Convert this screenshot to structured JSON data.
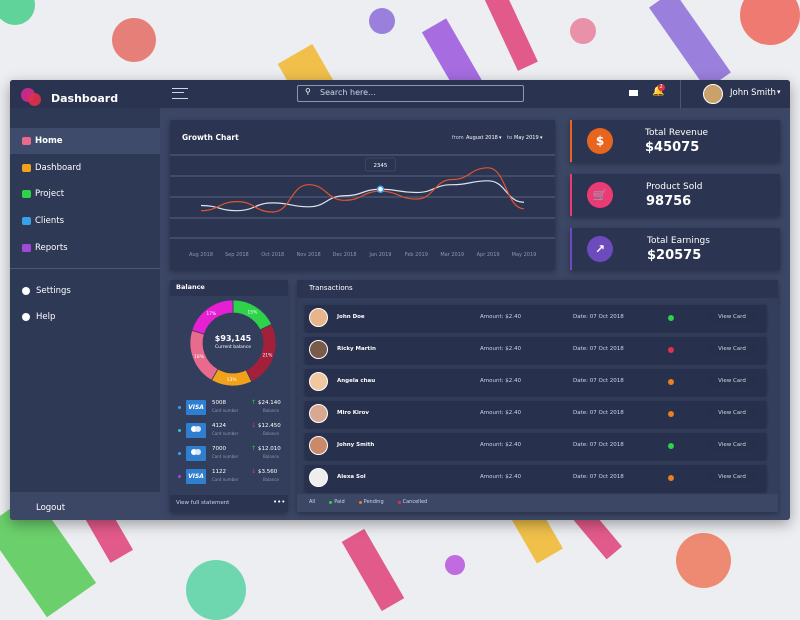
{
  "brand": "Dashboard",
  "search_placeholder": "Search here...",
  "notification_count": 2,
  "user": "John Smith",
  "nav": [
    "Home",
    "Dashboard",
    "Project",
    "Clients",
    "Reports"
  ],
  "nav_secondary": [
    "Settings",
    "Help"
  ],
  "logout": "Logout",
  "growth_chart": {
    "title": "Growth Chart",
    "from_label": "from",
    "from": "August 2018",
    "to_label": "to",
    "to": "May 2019",
    "tooltip": 2345,
    "x": [
      "Aug 2018",
      "Sep 2018",
      "Oct 2018",
      "Nov 2018",
      "Dec 2018",
      "Jan 2019",
      "Feb 2019",
      "Mar 2019",
      "Apr 2019",
      "May 2019"
    ],
    "ylim": [
      0,
      100
    ],
    "series": [
      {
        "color": "#e0e4ee",
        "values": [
          30,
          22,
          34,
          28,
          45,
          55,
          50,
          62,
          68,
          35
        ]
      },
      {
        "color": "#e0552f",
        "values": [
          22,
          36,
          20,
          62,
          38,
          52,
          40,
          70,
          88,
          25
        ]
      }
    ]
  },
  "stats": [
    {
      "label": "Total Revenue",
      "value": "$45075",
      "color": "#e8651f"
    },
    {
      "label": "Product Sold",
      "value": "98756",
      "color": "#ec3a74"
    },
    {
      "label": "Total Earnings",
      "value": "$20575",
      "color": "#6d4bbd"
    }
  ],
  "balance": {
    "title": "Balance",
    "total": "$93,145",
    "total_label": "Current balance",
    "values": [
      15,
      21,
      13,
      18,
      17
    ],
    "value_labels": [
      "15%",
      "21%",
      "13%",
      "18%",
      "17%"
    ],
    "colors": [
      "#2fd34a",
      "#a3203a",
      "#f0a21a",
      "#e86a8c",
      "#e620d2"
    ],
    "cards": [
      {
        "brand": "VISA",
        "number": "5008",
        "number_label": "Card number",
        "amount": "$24.140",
        "amount_label": "Balance",
        "dot": "#3aa0e8",
        "arrow": "#2fd34a"
      },
      {
        "brand": "",
        "number": "4124",
        "number_label": "Card number",
        "amount": "$12.450",
        "amount_label": "Balance",
        "dot": "#2bc4c4",
        "arrow": "#e83a5a"
      },
      {
        "brand": "",
        "number": "7000",
        "number_label": "Card number",
        "amount": "$12.010",
        "amount_label": "Balance",
        "dot": "#3aa0e8",
        "arrow": "#2fd34a"
      },
      {
        "brand": "VISA",
        "number": "1122",
        "number_label": "Card number",
        "amount": "$3.560",
        "amount_label": "Balance",
        "dot": "#a04ad8",
        "arrow": "#e83a5a"
      }
    ],
    "footer": "View full statement"
  },
  "transactions": {
    "title": "Transactions",
    "rows": [
      {
        "name": "John Doe",
        "amount": "Amount: $2.40",
        "date": "Date: 07 Oct 2018",
        "status_color": "#2fd34a",
        "button": "View Card"
      },
      {
        "name": "Ricky Martin",
        "amount": "Amount: $2.40",
        "date": "Date: 07 Oct 2018",
        "status_color": "#e0304a",
        "button": "View Card"
      },
      {
        "name": "Angela chau",
        "amount": "Amount: $2.40",
        "date": "Date: 07 Oct 2018",
        "status_color": "#e8801f",
        "button": "View Card"
      },
      {
        "name": "Miro Kirov",
        "amount": "Amount: $2.40",
        "date": "Date: 07 Oct 2018",
        "status_color": "#e8801f",
        "button": "View Card"
      },
      {
        "name": "Johny Smith",
        "amount": "Amount: $2.40",
        "date": "Date: 07 Oct 2018",
        "status_color": "#2fd34a",
        "button": "View Card"
      },
      {
        "name": "Alexa Sol",
        "amount": "Amount: $2.40",
        "date": "Date: 07 Oct 2018",
        "status_color": "#e8801f",
        "button": "View Card"
      }
    ],
    "filters": [
      {
        "label": "All",
        "color": ""
      },
      {
        "label": "Paid",
        "color": "#2fd34a"
      },
      {
        "label": "Pending",
        "color": "#e8801f"
      },
      {
        "label": "Cancelled",
        "color": "#e0304a"
      }
    ]
  }
}
